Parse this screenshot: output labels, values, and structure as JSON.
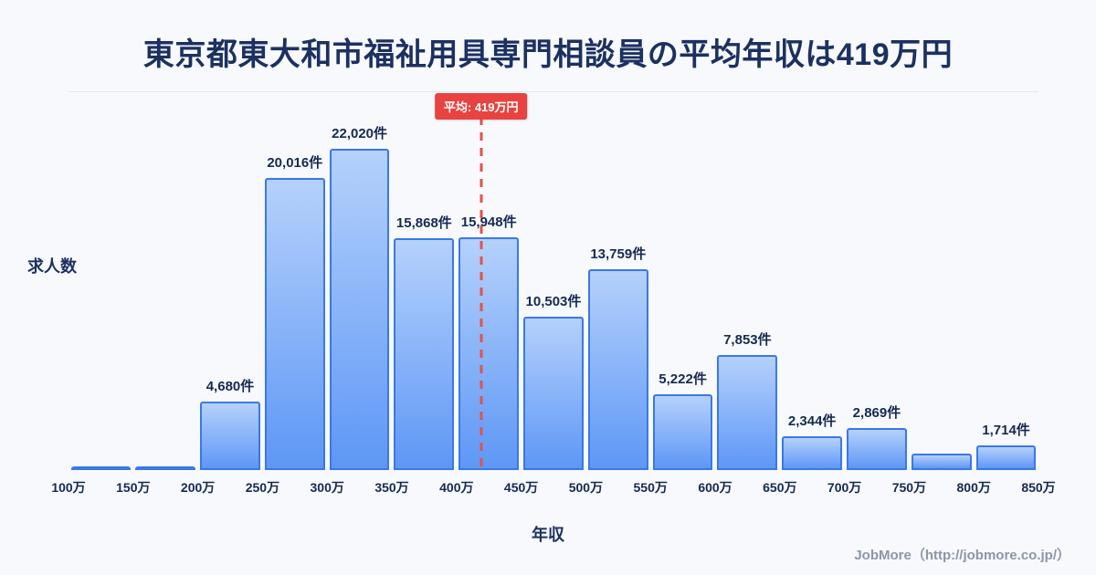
{
  "title": "東京都東大和市福祉用具専門相談員の平均年収は419万円",
  "footer": "JobMore（http://jobmore.co.jp/）",
  "colors": {
    "background": "#f7f9fd",
    "title": "#1c3061",
    "bar_fill_top": "#b5d1fb",
    "bar_fill_bottom": "#5e97f6",
    "bar_border": "#3a78e8",
    "average_line": "#e4514b",
    "badge_bg": "#e84340",
    "badge_text": "#ffffff",
    "label_text": "#16294f",
    "footer_text": "#8d96a8"
  },
  "chart_data": {
    "type": "bar",
    "title": "東京都東大和市福祉用具専門相談員の平均年収は419万円",
    "xlabel": "年収",
    "ylabel": "求人数",
    "x_ticks": [
      "100万",
      "150万",
      "200万",
      "250万",
      "300万",
      "350万",
      "400万",
      "450万",
      "500万",
      "550万",
      "600万",
      "650万",
      "700万",
      "750万",
      "800万",
      "850万"
    ],
    "categories": [
      "100万-150万",
      "150万-200万",
      "200万-250万",
      "250万-300万",
      "300万-350万",
      "350万-400万",
      "400万-450万",
      "450万-500万",
      "500万-550万",
      "550万-600万",
      "600万-650万",
      "650万-700万",
      "700万-750万",
      "750万-800万",
      "800万-850万"
    ],
    "values": [
      150,
      180,
      4680,
      20016,
      22020,
      15868,
      15948,
      10503,
      13759,
      5222,
      7853,
      2344,
      2869,
      1100,
      1714
    ],
    "bar_labels": [
      "",
      "",
      "4,680件",
      "20,016件",
      "22,020件",
      "15,868件",
      "15,948件",
      "10,503件",
      "13,759件",
      "5,222件",
      "7,853件",
      "2,344件",
      "2,869件",
      "",
      "1,714件"
    ],
    "ylim": [
      0,
      23000
    ],
    "grid": false,
    "legend": false,
    "average_line": {
      "x": 419,
      "label": "平均: 419万円",
      "x_axis_min": 100,
      "x_axis_max": 850
    }
  }
}
